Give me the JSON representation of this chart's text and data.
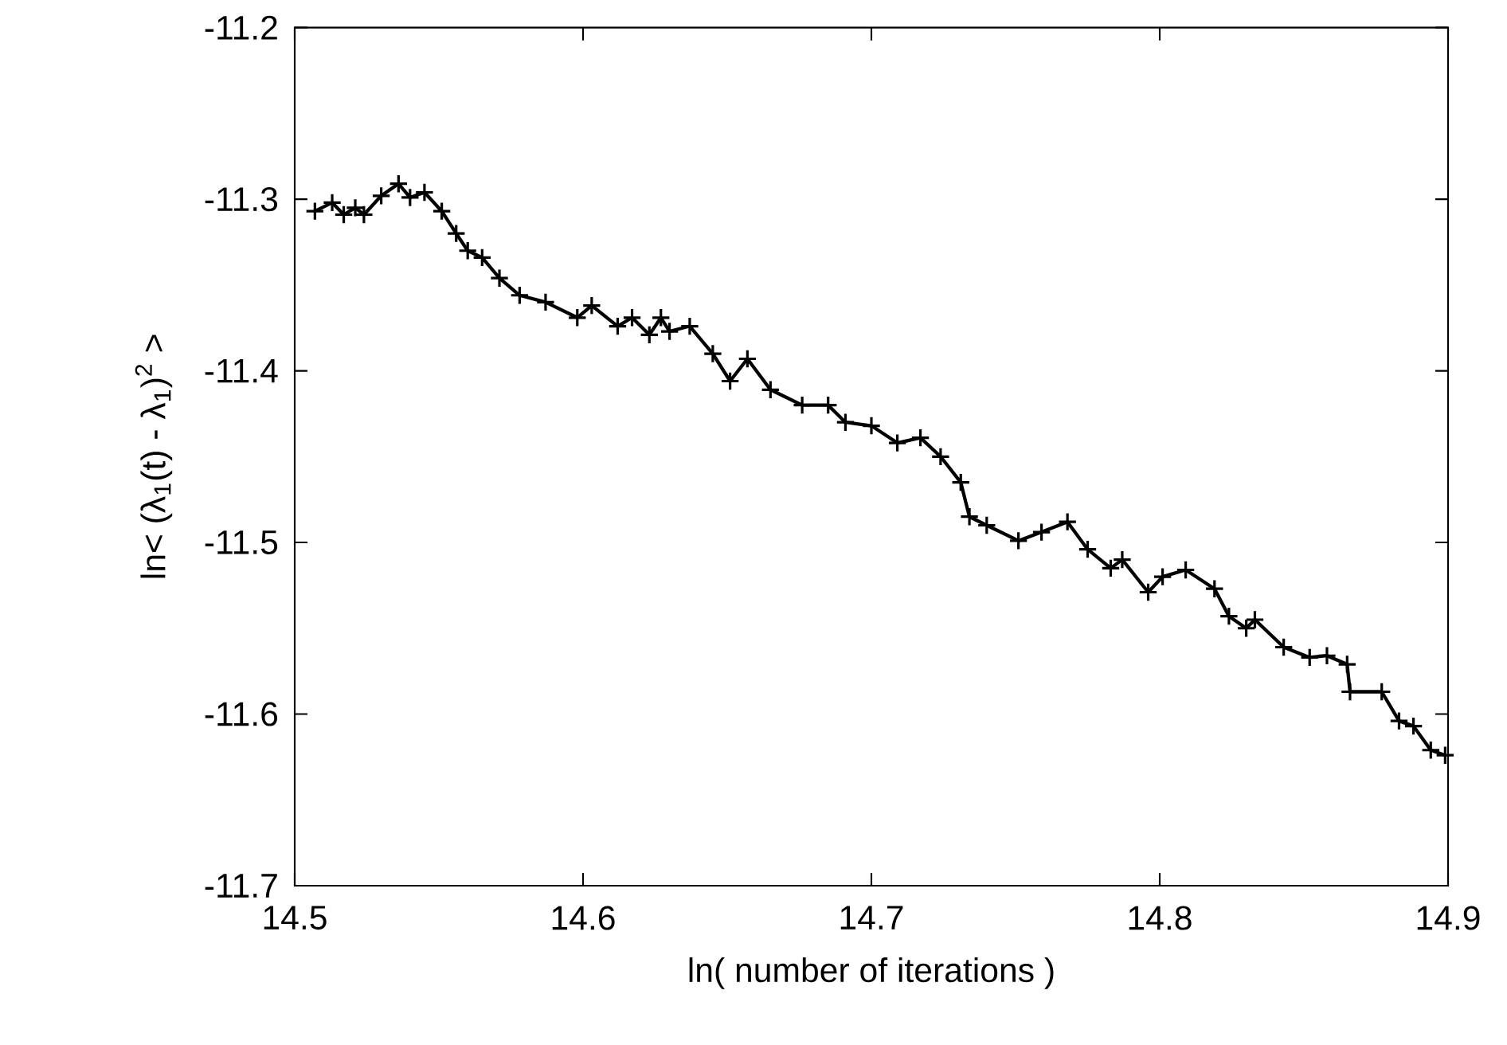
{
  "chart_data": {
    "type": "line",
    "xlabel": "ln( number of iterations )",
    "ylabel": "ln< (λ$_{1}$(t)  - λ$_{1}$)$^{2}$ >",
    "xlim": [
      14.5,
      14.9
    ],
    "ylim": [
      -11.7,
      -11.2
    ],
    "xticks": [
      14.5,
      14.6,
      14.7,
      14.8,
      14.9
    ],
    "yticks": [
      -11.7,
      -11.6,
      -11.5,
      -11.4,
      -11.3,
      -11.2
    ],
    "grid": false,
    "marker": "cross",
    "line_style": "solid",
    "series": [
      {
        "color": "#000000",
        "x": [
          14.507,
          14.513,
          14.517,
          14.521,
          14.524,
          14.53,
          14.536,
          14.54,
          14.545,
          14.551,
          14.556,
          14.56,
          14.565,
          14.571,
          14.578,
          14.587,
          14.598,
          14.603,
          14.612,
          14.617,
          14.623,
          14.627,
          14.63,
          14.637,
          14.645,
          14.651,
          14.657,
          14.665,
          14.676,
          14.685,
          14.691,
          14.7,
          14.709,
          14.717,
          14.724,
          14.731,
          14.734,
          14.74,
          14.751,
          14.759,
          14.768,
          14.775,
          14.783,
          14.787,
          14.796,
          14.801,
          14.809,
          14.819,
          14.824,
          14.83,
          14.833,
          14.843,
          14.852,
          14.858,
          14.865,
          14.866,
          14.877,
          14.883,
          14.888,
          14.894,
          14.899
        ],
        "values": [
          -11.307,
          -11.302,
          -11.309,
          -11.305,
          -11.309,
          -11.298,
          -11.291,
          -11.299,
          -11.296,
          -11.307,
          -11.32,
          -11.33,
          -11.334,
          -11.346,
          -11.356,
          -11.36,
          -11.369,
          -11.362,
          -11.374,
          -11.369,
          -11.379,
          -11.369,
          -11.377,
          -11.374,
          -11.39,
          -11.406,
          -11.393,
          -11.411,
          -11.42,
          -11.42,
          -11.43,
          -11.432,
          -11.442,
          -11.439,
          -11.45,
          -11.465,
          -11.485,
          -11.49,
          -11.499,
          -11.494,
          -11.488,
          -11.504,
          -11.515,
          -11.51,
          -11.529,
          -11.52,
          -11.516,
          -11.527,
          -11.543,
          -11.55,
          -11.545,
          -11.561,
          -11.567,
          -11.566,
          -11.571,
          -11.587,
          -11.587,
          -11.604,
          -11.607,
          -11.621,
          -11.624
        ]
      }
    ]
  }
}
